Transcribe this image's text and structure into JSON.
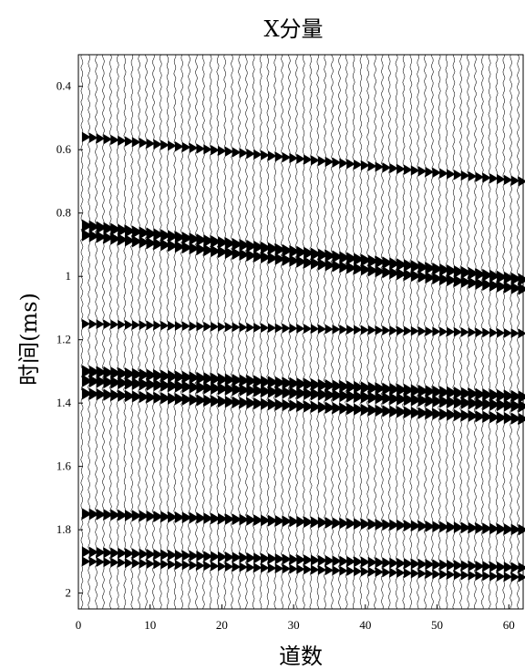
{
  "chart_data": {
    "type": "seismic-wiggle",
    "title": "X分量",
    "xlabel": "道数",
    "ylabel": "时间(ms)",
    "xlim": [
      0,
      62
    ],
    "ylim": [
      0.3,
      2.05
    ],
    "y_reversed": true,
    "x_ticks": [
      "0",
      "10",
      "20",
      "30",
      "40",
      "50",
      "60"
    ],
    "y_ticks": [
      "0.4",
      "0.6",
      "0.8",
      "1",
      "1.2",
      "1.4",
      "1.6",
      "1.8",
      "2"
    ],
    "x_tick_values": [
      0,
      10,
      20,
      30,
      40,
      50,
      60
    ],
    "y_tick_values": [
      0.4,
      0.6,
      0.8,
      1.0,
      1.2,
      1.4,
      1.6,
      1.8,
      2.0
    ],
    "trace_count": 62,
    "events": [
      {
        "time_trace1": 0.56,
        "time_trace62": 0.7,
        "strength": 0.55
      },
      {
        "time_trace1": 0.84,
        "time_trace62": 1.01,
        "strength": 1.0
      },
      {
        "time_trace1": 0.87,
        "time_trace62": 1.04,
        "strength": 0.9
      },
      {
        "time_trace1": 1.15,
        "time_trace62": 1.18,
        "strength": 0.45
      },
      {
        "time_trace1": 1.3,
        "time_trace62": 1.38,
        "strength": 1.0
      },
      {
        "time_trace1": 1.33,
        "time_trace62": 1.41,
        "strength": 1.0
      },
      {
        "time_trace1": 1.37,
        "time_trace62": 1.45,
        "strength": 0.9
      },
      {
        "time_trace1": 1.75,
        "time_trace62": 1.8,
        "strength": 0.8
      },
      {
        "time_trace1": 1.87,
        "time_trace62": 1.92,
        "strength": 0.7
      },
      {
        "time_trace1": 1.9,
        "time_trace62": 1.95,
        "strength": 0.5
      }
    ],
    "background_amplitude": 0.35,
    "grid": false,
    "legend": "none",
    "line_color": "#000000"
  }
}
